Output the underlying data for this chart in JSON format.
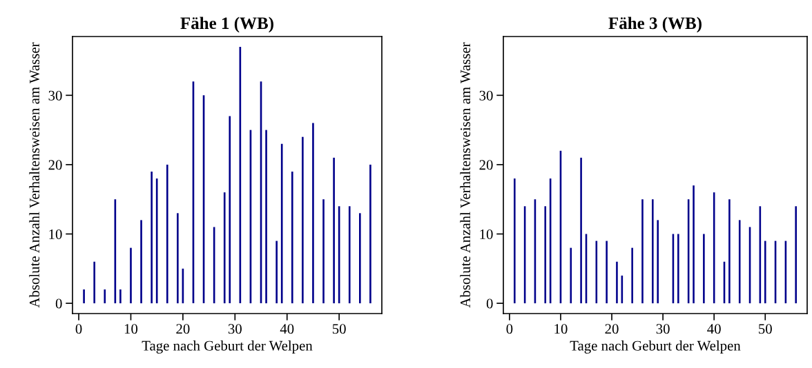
{
  "chart_data": [
    {
      "type": "bar",
      "title": "Fähe 1 (WB)",
      "xlabel": "Tage nach Geburt der Welpen",
      "ylabel": "Absolute Anzahl Verhaltensweisen am Wasser",
      "color": "#00008b",
      "grid": false,
      "x": [
        1,
        3,
        5,
        7,
        8,
        10,
        12,
        14,
        15,
        17,
        19,
        20,
        22,
        24,
        26,
        28,
        29,
        31,
        33,
        35,
        36,
        38,
        39,
        41,
        43,
        45,
        47,
        49,
        50,
        52,
        54,
        56
      ],
      "values": [
        2,
        6,
        2,
        15,
        2,
        8,
        12,
        19,
        18,
        20,
        13,
        5,
        32,
        30,
        11,
        16,
        27,
        37,
        25,
        32,
        25,
        9,
        23,
        19,
        24,
        26,
        15,
        21,
        14,
        14,
        13,
        20
      ],
      "xlim": [
        -1.2,
        58.2
      ],
      "xticks": [
        0,
        10,
        20,
        30,
        40,
        50
      ],
      "ylim": [
        -1.48,
        38.48
      ],
      "yticks": [
        0,
        10,
        20,
        30
      ]
    },
    {
      "type": "bar",
      "title": "Fähe 3 (WB)",
      "xlabel": "Tage nach Geburt der Welpen",
      "ylabel": "Absolute Anzahl Verhaltensweisen am Wasser",
      "color": "#00008b",
      "grid": false,
      "x": [
        1,
        3,
        5,
        7,
        8,
        10,
        12,
        14,
        15,
        17,
        19,
        21,
        22,
        24,
        26,
        28,
        29,
        32,
        33,
        35,
        36,
        38,
        40,
        42,
        43,
        45,
        47,
        49,
        50,
        52,
        54,
        56
      ],
      "values": [
        18,
        14,
        15,
        14,
        18,
        22,
        8,
        21,
        10,
        9,
        9,
        6,
        4,
        8,
        15,
        15,
        12,
        10,
        10,
        15,
        17,
        10,
        16,
        6,
        15,
        12,
        11,
        14,
        9,
        9,
        9,
        14
      ],
      "xlim": [
        -1.2,
        58.2
      ],
      "xticks": [
        0,
        10,
        20,
        30,
        40,
        50
      ],
      "ylim": [
        -1.48,
        38.48
      ],
      "yticks": [
        0,
        10,
        20,
        30
      ]
    }
  ]
}
